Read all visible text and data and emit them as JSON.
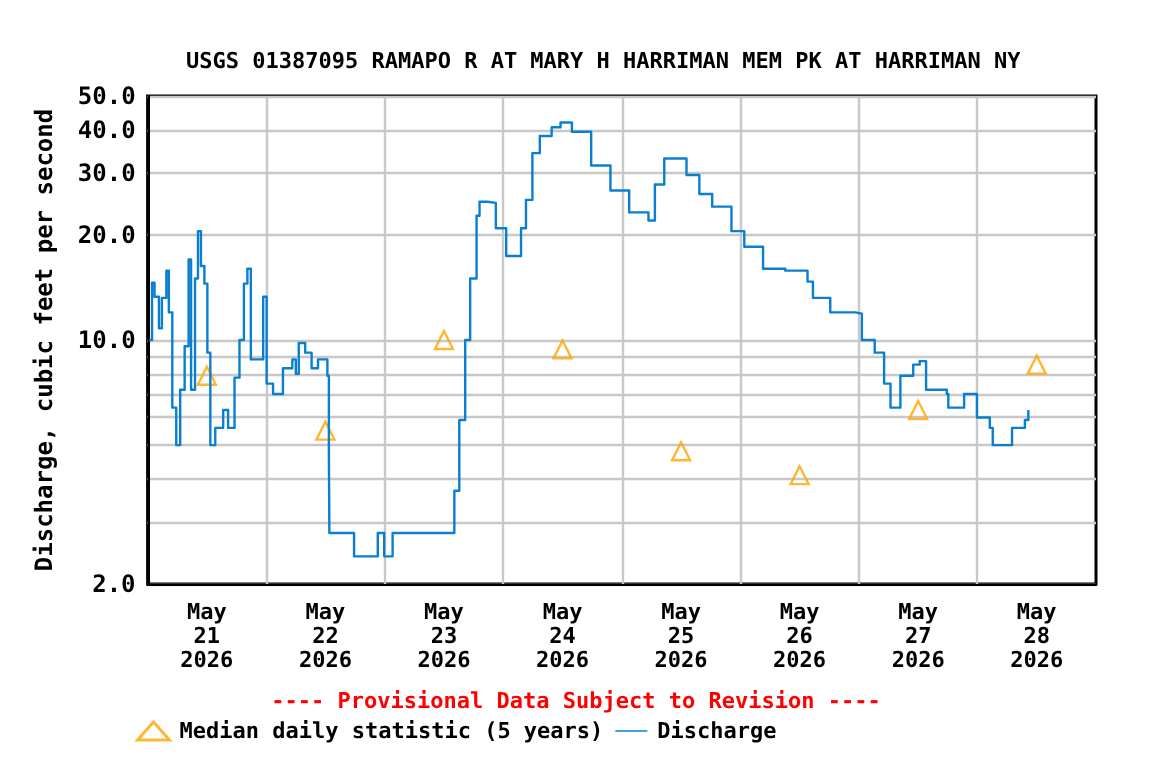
{
  "chart_data": {
    "type": "step",
    "title": "USGS 01387095 RAMAPO R AT MARY H HARRIMAN MEM PK AT HARRIMAN NY",
    "ylabel": "Discharge, cubic feet per second",
    "annotations": [
      "---- Provisional Data Subject to Revision ----"
    ],
    "log": "y",
    "grid": true,
    "legend": "bottom",
    "xlim": [
      "2026-05-21T00:00",
      "2026-05-29T00:00"
    ],
    "xticks": [
      {
        "value": "2026-05-21T12:00",
        "label": "May\n21\n2026"
      },
      {
        "value": "2026-05-22T12:00",
        "label": "May\n22\n2026"
      },
      {
        "value": "2026-05-23T12:00",
        "label": "May\n23\n2026"
      },
      {
        "value": "2026-05-24T12:00",
        "label": "May\n24\n2026"
      },
      {
        "value": "2026-05-25T12:00",
        "label": "May\n25\n2026"
      },
      {
        "value": "2026-05-26T12:00",
        "label": "May\n26\n2026"
      },
      {
        "value": "2026-05-27T12:00",
        "label": "May\n27\n2026"
      },
      {
        "value": "2026-05-28T12:00",
        "label": "May\n28\n2026"
      },
      {
        "value": "2026-05-22T00:00",
        "label": null
      },
      {
        "value": "2026-05-23T00:00",
        "label": null
      },
      {
        "value": "2026-05-24T00:00",
        "label": null
      },
      {
        "value": "2026-05-25T00:00",
        "label": null
      },
      {
        "value": "2026-05-26T00:00",
        "label": null
      },
      {
        "value": "2026-05-27T00:00",
        "label": null
      },
      {
        "value": "2026-05-28T00:00",
        "label": null
      }
    ],
    "ylim": [
      2,
      50
    ],
    "yticks": [
      {
        "value": 2,
        "label": "2.0"
      },
      {
        "value": 3,
        "label": null
      },
      {
        "value": 4,
        "label": null
      },
      {
        "value": 5,
        "label": null
      },
      {
        "value": 6,
        "label": null
      },
      {
        "value": 7,
        "label": null
      },
      {
        "value": 8,
        "label": null
      },
      {
        "value": 9,
        "label": null
      },
      {
        "value": 10,
        "label": "10.0"
      },
      {
        "value": 20,
        "label": "20.0"
      },
      {
        "value": 30,
        "label": "30.0"
      },
      {
        "value": 40,
        "label": "40.0"
      },
      {
        "value": 50,
        "label": "50.0"
      }
    ],
    "series": [
      {
        "name": "Median daily statistic (5 years)",
        "type": "scatter",
        "marker": "triangle",
        "color": "#ffa500",
        "x": [
          "2026-05-21T12:00",
          "2026-05-22T12:00",
          "2026-05-23T12:00",
          "2026-05-24T12:00",
          "2026-05-25T12:00",
          "2026-05-26T12:00",
          "2026-05-27T12:00",
          "2026-05-28T12:00"
        ],
        "values": [
          7.9,
          5.5,
          10,
          9.4,
          4.8,
          4.1,
          6.3,
          8.5
        ]
      },
      {
        "name": "Discharge",
        "color": "#0a7fd0",
        "x": [
          "2026-05-21T00:18",
          "2026-05-21T00:54",
          "2026-05-21T01:24",
          "2026-05-21T02:18",
          "2026-05-21T02:54",
          "2026-05-21T03:48",
          "2026-05-21T04:18",
          "2026-05-21T05:00",
          "2026-05-21T05:48",
          "2026-05-21T06:36",
          "2026-05-21T07:30",
          "2026-05-21T08:18",
          "2026-05-21T08:48",
          "2026-05-21T09:36",
          "2026-05-21T10:12",
          "2026-05-21T10:48",
          "2026-05-21T11:30",
          "2026-05-21T12:06",
          "2026-05-21T12:42",
          "2026-05-21T13:42",
          "2026-05-21T15:18",
          "2026-05-21T16:18",
          "2026-05-21T17:36",
          "2026-05-21T18:36",
          "2026-05-21T19:30",
          "2026-05-21T20:12",
          "2026-05-21T20:54",
          "2026-05-21T22:48",
          "2026-05-21T23:24",
          "2026-05-22T00:06",
          "2026-05-22T01:24",
          "2026-05-22T03:24",
          "2026-05-22T05:18",
          "2026-05-22T06:00",
          "2026-05-22T06:36",
          "2026-05-22T07:54",
          "2026-05-22T09:12",
          "2026-05-22T10:30",
          "2026-05-22T12:24",
          "2026-05-22T12:42",
          "2026-05-22T12:48",
          "2026-05-22T17:30",
          "2026-05-22T17:48",
          "2026-05-22T22:00",
          "2026-05-22T22:36",
          "2026-05-22T23:54",
          "2026-05-23T01:36",
          "2026-05-23T12:48",
          "2026-05-23T14:06",
          "2026-05-23T15:06",
          "2026-05-23T16:18",
          "2026-05-23T17:18",
          "2026-05-23T18:36",
          "2026-05-23T19:12",
          "2026-05-23T20:48",
          "2026-05-23T22:30",
          "2026-05-24T00:36",
          "2026-05-24T02:00",
          "2026-05-24T03:36",
          "2026-05-24T04:36",
          "2026-05-24T05:54",
          "2026-05-24T07:24",
          "2026-05-24T09:48",
          "2026-05-24T11:36",
          "2026-05-24T13:54",
          "2026-05-24T17:48",
          "2026-05-24T21:42",
          "2026-05-25T01:30",
          "2026-05-25T05:24",
          "2026-05-25T06:42",
          "2026-05-25T08:36",
          "2026-05-25T10:30",
          "2026-05-25T13:06",
          "2026-05-25T15:42",
          "2026-05-25T18:18",
          "2026-05-25T22:12",
          "2026-05-26T00:48",
          "2026-05-26T04:36",
          "2026-05-26T09:06",
          "2026-05-26T13:36",
          "2026-05-26T14:42",
          "2026-05-26T18:12",
          "2026-05-26T23:18",
          "2026-05-27T00:36",
          "2026-05-27T03:12",
          "2026-05-27T05:06",
          "2026-05-27T06:24",
          "2026-05-27T08:24",
          "2026-05-27T11:00",
          "2026-05-27T12:18",
          "2026-05-27T13:36",
          "2026-05-27T17:48",
          "2026-05-27T18:06",
          "2026-05-27T20:42",
          "2026-05-27T21:18",
          "2026-05-27T23:54",
          "2026-05-28T02:30",
          "2026-05-28T03:06",
          "2026-05-28T06:24",
          "2026-05-28T07:00",
          "2026-05-28T09:36",
          "2026-05-28T10:18"
        ],
        "values": [
          10,
          14.6,
          13.3,
          10.8,
          13.2,
          15.8,
          12,
          6.4,
          5,
          7.2,
          9.6,
          17,
          7.2,
          15,
          20.5,
          16.3,
          14.5,
          9.2,
          5,
          5.6,
          6.3,
          5.6,
          7.8,
          10,
          14.5,
          16,
          8.8,
          8.8,
          13.3,
          7.5,
          7,
          8.3,
          8.8,
          8,
          9.8,
          9.2,
          8.3,
          8.8,
          7.9,
          4.8,
          2.8,
          2.8,
          2.4,
          2.4,
          2.8,
          2.4,
          2.8,
          2.8,
          3.7,
          5.9,
          10,
          15,
          22.7,
          24.9,
          24.7,
          20.9,
          17.4,
          17.4,
          20.9,
          25.2,
          34.3,
          38.4,
          40.7,
          42,
          39.5,
          31.6,
          26.8,
          23.2,
          22,
          27.9,
          33.1,
          33.1,
          29.7,
          26.2,
          24.1,
          20.5,
          18.5,
          16,
          15.8,
          14.7,
          13.2,
          12,
          11.9,
          10,
          9.2,
          7.5,
          6.4,
          7.9,
          8.5,
          8.7,
          7.2,
          7,
          6.4,
          6.4,
          7,
          6,
          5.6,
          5,
          5,
          5.6,
          5.9,
          6.3
        ]
      }
    ]
  }
}
